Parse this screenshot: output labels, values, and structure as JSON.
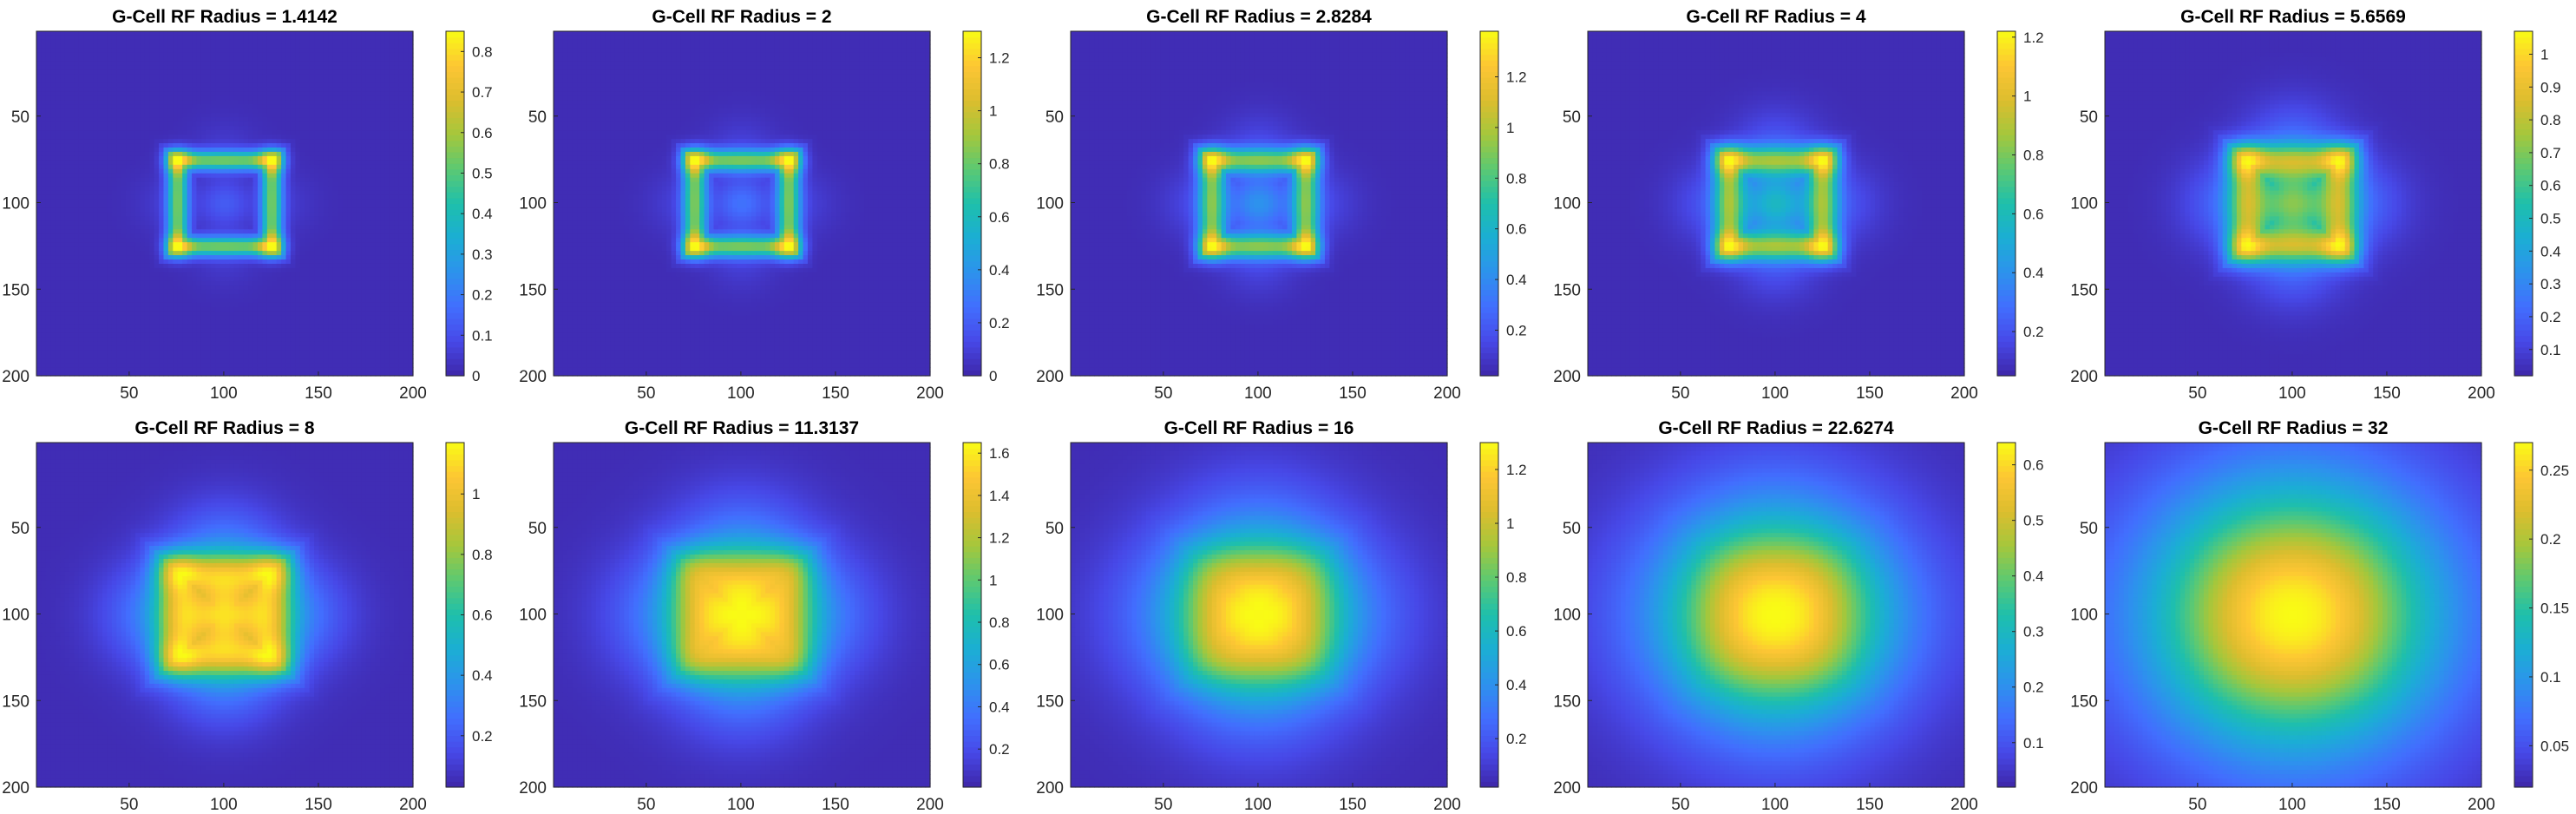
{
  "chart_data": [
    {
      "type": "heatmap",
      "title": "G-Cell RF Radius = 1.4142",
      "radius": 1.4142,
      "pattern": "ring",
      "xlim": [
        1,
        200
      ],
      "ylim": [
        1,
        200
      ],
      "y_reversed": true,
      "x_ticks": [
        50,
        100,
        150,
        200
      ],
      "y_ticks": [
        50,
        100,
        150,
        200
      ],
      "color_range": [
        0,
        0.85
      ],
      "colorbar_ticks": [
        0,
        0.1,
        0.2,
        0.3,
        0.4,
        0.5,
        0.6,
        0.7,
        0.8
      ],
      "colorbar_tick_labels": [
        "0",
        "0.1",
        "0.2",
        "0.3",
        "0.4",
        "0.5",
        "0.6",
        "0.7",
        "0.8"
      ],
      "colormap": "parula"
    },
    {
      "type": "heatmap",
      "title": "G-Cell RF Radius = 2",
      "radius": 2,
      "pattern": "ring",
      "xlim": [
        1,
        200
      ],
      "ylim": [
        1,
        200
      ],
      "y_reversed": true,
      "x_ticks": [
        50,
        100,
        150,
        200
      ],
      "y_ticks": [
        50,
        100,
        150,
        200
      ],
      "color_range": [
        0,
        1.3
      ],
      "colorbar_ticks": [
        0,
        0.2,
        0.4,
        0.6,
        0.8,
        1,
        1.2
      ],
      "colorbar_tick_labels": [
        "0",
        "0.2",
        "0.4",
        "0.6",
        "0.8",
        "1",
        "1.2"
      ],
      "colormap": "parula"
    },
    {
      "type": "heatmap",
      "title": "G-Cell RF Radius = 2.8284",
      "radius": 2.8284,
      "pattern": "ring",
      "xlim": [
        1,
        200
      ],
      "ylim": [
        1,
        200
      ],
      "y_reversed": true,
      "x_ticks": [
        50,
        100,
        150,
        200
      ],
      "y_ticks": [
        50,
        100,
        150,
        200
      ],
      "color_range": [
        0.02,
        1.38
      ],
      "colorbar_ticks": [
        0.2,
        0.4,
        0.6,
        0.8,
        1,
        1.2
      ],
      "colorbar_tick_labels": [
        "0.2",
        "0.4",
        "0.6",
        "0.8",
        "1",
        "1.2"
      ],
      "colormap": "parula"
    },
    {
      "type": "heatmap",
      "title": "G-Cell RF Radius = 4",
      "radius": 4,
      "pattern": "ring",
      "xlim": [
        1,
        200
      ],
      "ylim": [
        1,
        200
      ],
      "y_reversed": true,
      "x_ticks": [
        50,
        100,
        150,
        200
      ],
      "y_ticks": [
        50,
        100,
        150,
        200
      ],
      "color_range": [
        0.05,
        1.22
      ],
      "colorbar_ticks": [
        0.2,
        0.4,
        0.6,
        0.8,
        1,
        1.2
      ],
      "colorbar_tick_labels": [
        "0.2",
        "0.4",
        "0.6",
        "0.8",
        "1",
        "1.2"
      ],
      "colormap": "parula"
    },
    {
      "type": "heatmap",
      "title": "G-Cell RF Radius = 5.6569",
      "radius": 5.6569,
      "pattern": "ring",
      "xlim": [
        1,
        200
      ],
      "ylim": [
        1,
        200
      ],
      "y_reversed": true,
      "x_ticks": [
        50,
        100,
        150,
        200
      ],
      "y_ticks": [
        50,
        100,
        150,
        200
      ],
      "color_range": [
        0.02,
        1.07
      ],
      "colorbar_ticks": [
        0.1,
        0.2,
        0.3,
        0.4,
        0.5,
        0.6,
        0.7,
        0.8,
        0.9,
        1
      ],
      "colorbar_tick_labels": [
        "0.1",
        "0.2",
        "0.3",
        "0.4",
        "0.5",
        "0.6",
        "0.7",
        "0.8",
        "0.9",
        "1"
      ],
      "colormap": "parula"
    },
    {
      "type": "heatmap",
      "title": "G-Cell RF Radius = 8",
      "radius": 8,
      "pattern": "ring",
      "xlim": [
        1,
        200
      ],
      "ylim": [
        1,
        200
      ],
      "y_reversed": true,
      "x_ticks": [
        50,
        100,
        150,
        200
      ],
      "y_ticks": [
        50,
        100,
        150,
        200
      ],
      "color_range": [
        0.03,
        1.17
      ],
      "colorbar_ticks": [
        0.2,
        0.4,
        0.6,
        0.8,
        1
      ],
      "colorbar_tick_labels": [
        "0.2",
        "0.4",
        "0.6",
        "0.8",
        "1"
      ],
      "colormap": "parula"
    },
    {
      "type": "heatmap",
      "title": "G-Cell RF Radius = 11.3137",
      "radius": 11.3137,
      "pattern": "blob",
      "xlim": [
        1,
        200
      ],
      "ylim": [
        1,
        200
      ],
      "y_reversed": true,
      "x_ticks": [
        50,
        100,
        150,
        200
      ],
      "y_ticks": [
        50,
        100,
        150,
        200
      ],
      "color_range": [
        0.02,
        1.65
      ],
      "colorbar_ticks": [
        0.2,
        0.4,
        0.6,
        0.8,
        1,
        1.2,
        1.4,
        1.6
      ],
      "colorbar_tick_labels": [
        "0.2",
        "0.4",
        "0.6",
        "0.8",
        "1",
        "1.2",
        "1.4",
        "1.6"
      ],
      "colormap": "parula"
    },
    {
      "type": "heatmap",
      "title": "G-Cell RF Radius = 16",
      "radius": 16,
      "pattern": "blob",
      "xlim": [
        1,
        200
      ],
      "ylim": [
        1,
        200
      ],
      "y_reversed": true,
      "x_ticks": [
        50,
        100,
        150,
        200
      ],
      "y_ticks": [
        50,
        100,
        150,
        200
      ],
      "color_range": [
        0.02,
        1.3
      ],
      "colorbar_ticks": [
        0.2,
        0.4,
        0.6,
        0.8,
        1,
        1.2
      ],
      "colorbar_tick_labels": [
        "0.2",
        "0.4",
        "0.6",
        "0.8",
        "1",
        "1.2"
      ],
      "colormap": "parula"
    },
    {
      "type": "heatmap",
      "title": "G-Cell RF Radius = 22.6274",
      "radius": 22.6274,
      "pattern": "blob",
      "xlim": [
        1,
        200
      ],
      "ylim": [
        1,
        200
      ],
      "y_reversed": true,
      "x_ticks": [
        50,
        100,
        150,
        200
      ],
      "y_ticks": [
        50,
        100,
        150,
        200
      ],
      "color_range": [
        0.02,
        0.64
      ],
      "colorbar_ticks": [
        0.1,
        0.2,
        0.3,
        0.4,
        0.5,
        0.6
      ],
      "colorbar_tick_labels": [
        "0.1",
        "0.2",
        "0.3",
        "0.4",
        "0.5",
        "0.6"
      ],
      "colormap": "parula"
    },
    {
      "type": "heatmap",
      "title": "G-Cell RF Radius = 32",
      "radius": 32,
      "pattern": "blob",
      "xlim": [
        1,
        200
      ],
      "ylim": [
        1,
        200
      ],
      "y_reversed": true,
      "x_ticks": [
        50,
        100,
        150,
        200
      ],
      "y_ticks": [
        50,
        100,
        150,
        200
      ],
      "color_range": [
        0.02,
        0.27
      ],
      "colorbar_ticks": [
        0.05,
        0.1,
        0.15,
        0.2,
        0.25
      ],
      "colorbar_tick_labels": [
        "0.05",
        "0.1",
        "0.15",
        "0.2",
        "0.25"
      ],
      "colormap": "parula"
    }
  ],
  "colors": {
    "parula_low": "#3e26a8",
    "parula_mid_blue": "#2f8ee6",
    "parula_teal": "#1cbbad",
    "parula_green": "#8fc84a",
    "parula_orange": "#fbbb3d",
    "parula_high": "#f9fb15",
    "axis_color": "#262626",
    "text_color": "#262626",
    "background": "#ffffff"
  }
}
